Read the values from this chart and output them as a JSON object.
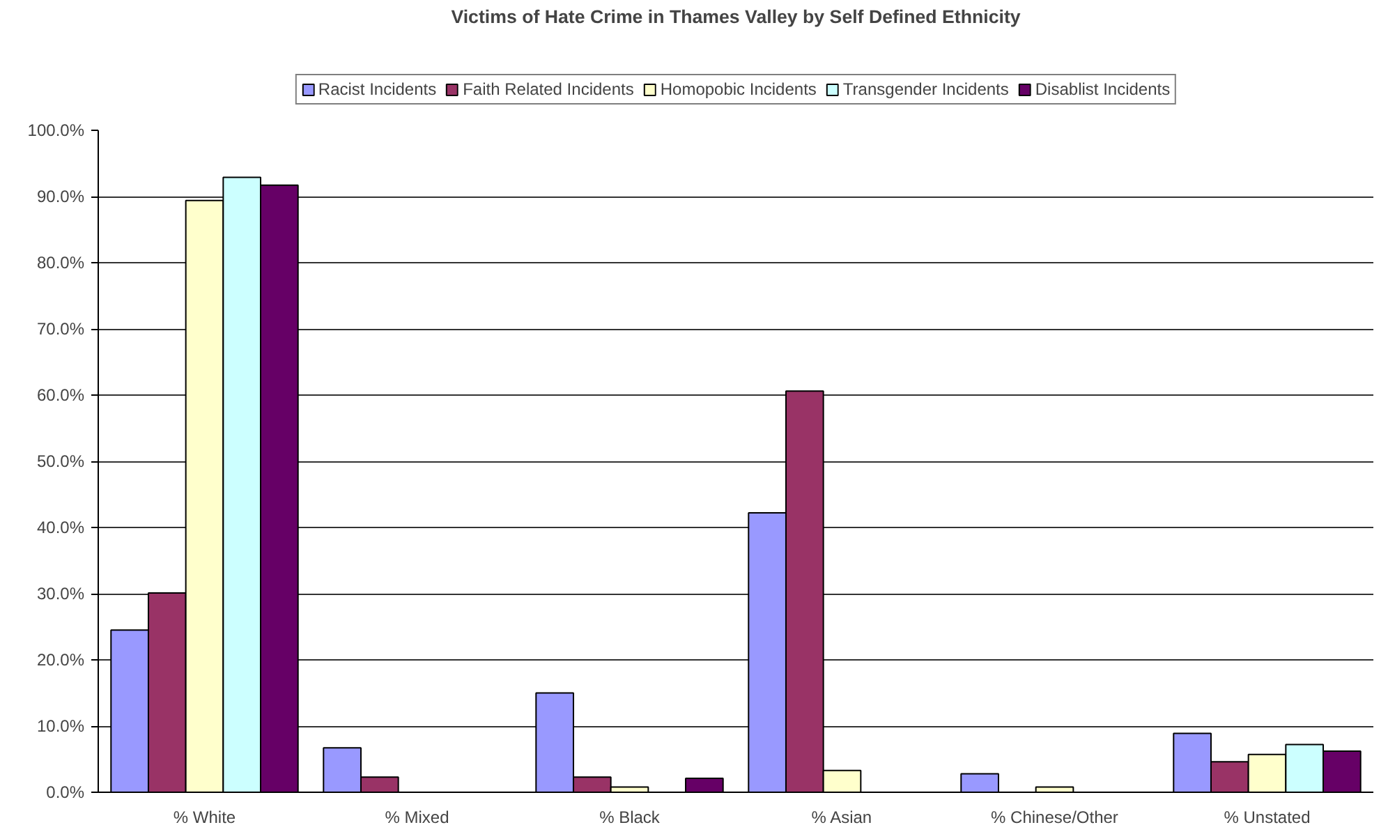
{
  "chart_data": {
    "type": "bar",
    "title": "Victims of Hate Crime in Thames Valley by Self Defined Ethnicity",
    "categories": [
      "% White",
      "% Mixed",
      "% Black",
      "% Asian",
      "% Chinese/Other",
      "% Unstated"
    ],
    "series": [
      {
        "name": "Racist Incidents",
        "color": "#9999ff",
        "values": [
          24.5,
          6.7,
          15.0,
          42.2,
          2.8,
          8.9
        ]
      },
      {
        "name": "Faith Related Incidents",
        "color": "#993366",
        "values": [
          30.1,
          2.3,
          2.3,
          60.6,
          null,
          4.6
        ]
      },
      {
        "name": "Homopobic Incidents",
        "color": "#ffffcc",
        "values": [
          89.4,
          null,
          0.8,
          3.3,
          0.8,
          5.7
        ]
      },
      {
        "name": "Transgender Incidents",
        "color": "#ccffff",
        "values": [
          92.9,
          null,
          null,
          null,
          null,
          7.2
        ]
      },
      {
        "name": "Disablist Incidents",
        "color": "#660066",
        "values": [
          91.7,
          null,
          2.1,
          null,
          null,
          6.2
        ]
      }
    ],
    "ylim": [
      0,
      100
    ],
    "yticks": [
      {
        "value": 0,
        "label": "0.0%"
      },
      {
        "value": 10,
        "label": "10.0%"
      },
      {
        "value": 20,
        "label": "20.0%"
      },
      {
        "value": 30,
        "label": "30.0%"
      },
      {
        "value": 40,
        "label": "40.0%"
      },
      {
        "value": 50,
        "label": "50.0%"
      },
      {
        "value": 60,
        "label": "60.0%"
      },
      {
        "value": 70,
        "label": "70.0%"
      },
      {
        "value": 80,
        "label": "80.0%"
      },
      {
        "value": 90,
        "label": "90.0%"
      },
      {
        "value": 100,
        "label": "100.0%"
      }
    ],
    "grid": "y",
    "legend": "top"
  }
}
